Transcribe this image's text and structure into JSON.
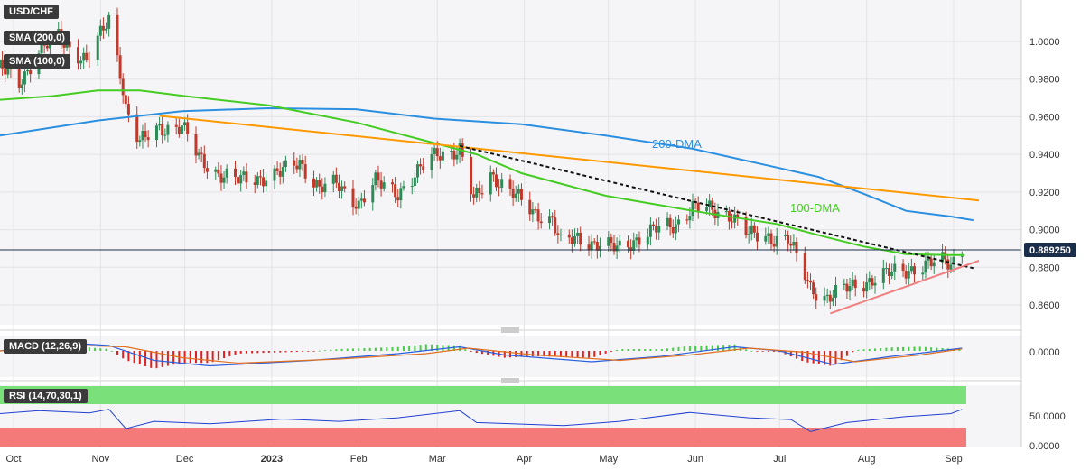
{
  "chart_data": {
    "type": "candlestick",
    "symbol_label": "USD/CHF",
    "indicator_labels": {
      "sma200": "SMA (200,0)",
      "sma100": "SMA (100,0)",
      "macd": "MACD (12,26,9)",
      "rsi": "RSI (14,70,30,1)"
    },
    "annotations": {
      "dma200": "200-DMA",
      "dma100": "100-DMA"
    },
    "current_price_label": "0.889250",
    "current_price": 0.88925,
    "y_ticks": [
      "1.0000",
      "0.9800",
      "0.9600",
      "0.9400",
      "0.9200",
      "0.9000",
      "0.8800",
      "0.8600"
    ],
    "y_tick_values": [
      1.0,
      0.98,
      0.96,
      0.94,
      0.92,
      0.9,
      0.88,
      0.86
    ],
    "ylim": [
      0.851,
      1.021
    ],
    "macd_tick": "0.0000",
    "rsi_ticks": [
      "50.0000",
      "0.0000"
    ],
    "x_tick_labels": [
      "Oct",
      "Nov",
      "Dec",
      "2023",
      "Feb",
      "Mar",
      "Apr",
      "May",
      "Jun",
      "Jul",
      "Aug",
      "Sep"
    ],
    "x_tick_dates": [
      "2022-10-01",
      "2022-11-01",
      "2022-12-01",
      "2023-01-01",
      "2023-02-01",
      "2023-03-01",
      "2023-04-01",
      "2023-05-01",
      "2023-06-01",
      "2023-07-01",
      "2023-08-01",
      "2023-09-01"
    ],
    "close_path": [
      [
        "2022-09-26",
        0.986
      ],
      [
        "2022-10-03",
        0.978
      ],
      [
        "2022-10-10",
        0.995
      ],
      [
        "2022-10-17",
        1.002
      ],
      [
        "2022-10-21",
        0.997
      ],
      [
        "2022-10-27",
        0.99
      ],
      [
        "2022-11-01",
        1.003
      ],
      [
        "2022-11-04",
        1.012
      ],
      [
        "2022-11-08",
        0.985
      ],
      [
        "2022-11-10",
        0.965
      ],
      [
        "2022-11-15",
        0.946
      ],
      [
        "2022-11-22",
        0.954
      ],
      [
        "2022-11-30",
        0.955
      ],
      [
        "2022-12-06",
        0.938
      ],
      [
        "2022-12-13",
        0.93
      ],
      [
        "2022-12-20",
        0.926
      ],
      [
        "2022-12-29",
        0.928
      ],
      [
        "2023-01-04",
        0.93
      ],
      [
        "2023-01-11",
        0.936
      ],
      [
        "2023-01-18",
        0.922
      ],
      [
        "2023-01-24",
        0.924
      ],
      [
        "2023-02-01",
        0.914
      ],
      [
        "2023-02-07",
        0.925
      ],
      [
        "2023-02-15",
        0.92
      ],
      [
        "2023-02-22",
        0.93
      ],
      [
        "2023-03-01",
        0.941
      ],
      [
        "2023-03-09",
        0.942
      ],
      [
        "2023-03-14",
        0.915
      ],
      [
        "2023-03-20",
        0.93
      ],
      [
        "2023-03-27",
        0.92
      ],
      [
        "2023-04-04",
        0.91
      ],
      [
        "2023-04-11",
        0.905
      ],
      [
        "2023-04-14",
        0.892
      ],
      [
        "2023-04-20",
        0.896
      ],
      [
        "2023-04-27",
        0.892
      ],
      [
        "2023-05-04",
        0.89
      ],
      [
        "2023-05-11",
        0.895
      ],
      [
        "2023-05-18",
        0.9
      ],
      [
        "2023-05-25",
        0.903
      ],
      [
        "2023-05-31",
        0.912
      ],
      [
        "2023-06-07",
        0.91
      ],
      [
        "2023-06-14",
        0.908
      ],
      [
        "2023-06-20",
        0.897
      ],
      [
        "2023-06-28",
        0.896
      ],
      [
        "2023-07-04",
        0.895
      ],
      [
        "2023-07-07",
        0.885
      ],
      [
        "2023-07-12",
        0.869
      ],
      [
        "2023-07-18",
        0.864
      ],
      [
        "2023-07-24",
        0.868
      ],
      [
        "2023-07-31",
        0.872
      ],
      [
        "2023-08-07",
        0.876
      ],
      [
        "2023-08-14",
        0.878
      ],
      [
        "2023-08-21",
        0.881
      ],
      [
        "2023-08-28",
        0.883
      ],
      [
        "2023-08-31",
        0.882
      ],
      [
        "2023-09-04",
        0.8893
      ]
    ],
    "ma200": [
      [
        "2022-09-26",
        0.95
      ],
      [
        "2022-10-31",
        0.958
      ],
      [
        "2022-11-30",
        0.963
      ],
      [
        "2022-12-31",
        0.9645
      ],
      [
        "2023-01-31",
        0.964
      ],
      [
        "2023-02-28",
        0.959
      ],
      [
        "2023-03-31",
        0.956
      ],
      [
        "2023-04-30",
        0.95
      ],
      [
        "2023-05-31",
        0.943
      ],
      [
        "2023-06-30",
        0.933
      ],
      [
        "2023-07-15",
        0.928
      ],
      [
        "2023-07-31",
        0.919
      ],
      [
        "2023-08-15",
        0.91
      ],
      [
        "2023-08-31",
        0.907
      ],
      [
        "2023-09-08",
        0.905
      ]
    ],
    "ma100": [
      [
        "2022-09-26",
        0.969
      ],
      [
        "2022-10-15",
        0.971
      ],
      [
        "2022-10-31",
        0.974
      ],
      [
        "2022-11-15",
        0.974
      ],
      [
        "2022-12-01",
        0.971
      ],
      [
        "2022-12-31",
        0.966
      ],
      [
        "2023-01-31",
        0.957
      ],
      [
        "2023-02-28",
        0.946
      ],
      [
        "2023-03-15",
        0.94
      ],
      [
        "2023-03-31",
        0.93
      ],
      [
        "2023-04-30",
        0.918
      ],
      [
        "2023-05-31",
        0.91
      ],
      [
        "2023-06-30",
        0.903
      ],
      [
        "2023-07-15",
        0.897
      ],
      [
        "2023-07-31",
        0.891
      ],
      [
        "2023-08-15",
        0.887
      ],
      [
        "2023-08-31",
        0.8865
      ],
      [
        "2023-09-05",
        0.8865
      ]
    ],
    "trendlines": {
      "orange": [
        [
          "2022-11-22",
          0.9605
        ],
        [
          "2023-09-10",
          0.9155
        ]
      ],
      "black_dotted": [
        [
          "2023-03-09",
          0.9445
        ],
        [
          "2023-09-08",
          0.8795
        ]
      ],
      "pink_support": [
        [
          "2023-07-19",
          0.8555
        ],
        [
          "2023-09-10",
          0.8835
        ]
      ]
    },
    "macd": {
      "path": [
        [
          "2022-09-26",
          0.0
        ],
        [
          "2022-10-20",
          0.006
        ],
        [
          "2022-11-04",
          0.004
        ],
        [
          "2022-11-20",
          -0.007
        ],
        [
          "2022-12-10",
          -0.011
        ],
        [
          "2023-01-15",
          -0.007
        ],
        [
          "2023-02-15",
          -0.002
        ],
        [
          "2023-03-09",
          0.003
        ],
        [
          "2023-03-25",
          -0.003
        ],
        [
          "2023-04-25",
          -0.008
        ],
        [
          "2023-05-20",
          -0.004
        ],
        [
          "2023-06-15",
          0.003
        ],
        [
          "2023-07-01",
          0.0
        ],
        [
          "2023-07-20",
          -0.01
        ],
        [
          "2023-08-10",
          -0.004
        ],
        [
          "2023-09-04",
          0.002
        ]
      ],
      "signal": [
        [
          "2022-09-26",
          0.0
        ],
        [
          "2022-10-25",
          0.004
        ],
        [
          "2022-11-10",
          0.003
        ],
        [
          "2022-11-30",
          -0.005
        ],
        [
          "2022-12-20",
          -0.009
        ],
        [
          "2023-01-25",
          -0.006
        ],
        [
          "2023-02-25",
          -0.002
        ],
        [
          "2023-03-12",
          0.002
        ],
        [
          "2023-04-05",
          -0.003
        ],
        [
          "2023-05-05",
          -0.007
        ],
        [
          "2023-05-30",
          -0.003
        ],
        [
          "2023-06-20",
          0.002
        ],
        [
          "2023-07-10",
          -0.001
        ],
        [
          "2023-07-28",
          -0.008
        ],
        [
          "2023-08-20",
          -0.003
        ],
        [
          "2023-09-04",
          0.0015
        ]
      ]
    },
    "rsi": {
      "bands": {
        "overbought": 70,
        "oversold": 30
      },
      "path": [
        [
          "2022-09-26",
          55
        ],
        [
          "2022-10-10",
          60
        ],
        [
          "2022-10-28",
          56
        ],
        [
          "2022-11-04",
          62
        ],
        [
          "2022-11-10",
          30
        ],
        [
          "2022-11-20",
          42
        ],
        [
          "2022-12-10",
          38
        ],
        [
          "2023-01-05",
          46
        ],
        [
          "2023-01-25",
          42
        ],
        [
          "2023-02-15",
          48
        ],
        [
          "2023-03-09",
          60
        ],
        [
          "2023-03-15",
          40
        ],
        [
          "2023-04-15",
          35
        ],
        [
          "2023-05-05",
          42
        ],
        [
          "2023-05-30",
          57
        ],
        [
          "2023-06-20",
          48
        ],
        [
          "2023-07-05",
          45
        ],
        [
          "2023-07-12",
          25
        ],
        [
          "2023-07-25",
          40
        ],
        [
          "2023-08-15",
          50
        ],
        [
          "2023-08-31",
          55
        ],
        [
          "2023-09-04",
          62
        ]
      ]
    },
    "colors": {
      "candle_up": "#2e8b57",
      "candle_down": "#c0392b",
      "ma200": "#2a8fe0",
      "ma100": "#44cc22",
      "orange_trend": "#ff9900",
      "support_trend": "#f08080",
      "price_line": "#1a2e4a",
      "macd_pos": "#44cc44",
      "macd_neg": "#e02020",
      "macd_line": "#2a5fe0",
      "signal_line": "#e07020",
      "rsi_line": "#2040d0",
      "rsi_overbought": "#7ae07a",
      "rsi_oversold": "#f47a7a"
    }
  }
}
